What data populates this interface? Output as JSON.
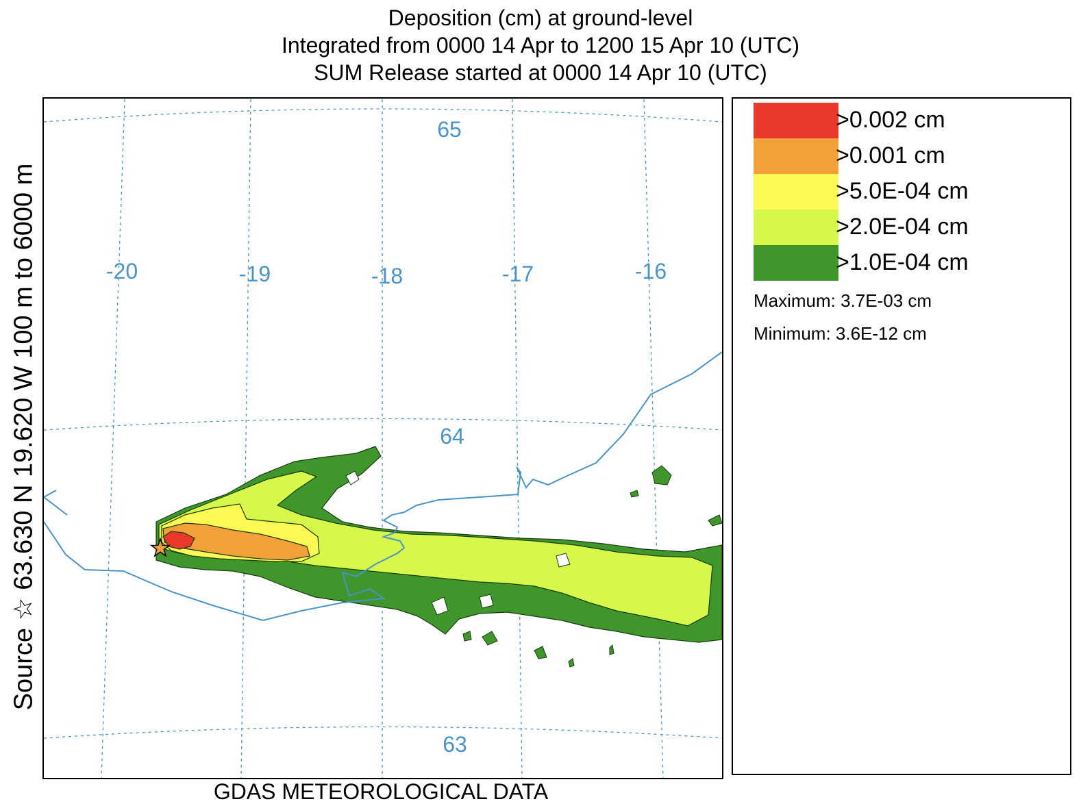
{
  "title": {
    "line1": "Deposition (cm) at ground-level",
    "line2": "Integrated from 0000 14 Apr to 1200 15 Apr 10 (UTC)",
    "line3": "SUM  Release started at 0000 14 Apr 10 (UTC)"
  },
  "side_label": "Source ☆  63.630  N  19.620  W     100 m to  6000 m",
  "footer": "GDAS METEOROLOGICAL DATA",
  "map": {
    "longitude_labels": [
      "-20",
      "-19",
      "-18",
      "-17",
      "-16"
    ],
    "latitude_labels": [
      "65",
      "64",
      "63"
    ],
    "source_icon": "star-icon",
    "colors": {
      "grid": "#4a93c8",
      "coast": "#4a93c8",
      "level_1": "#3f962a",
      "level_2": "#d6f84a",
      "level_3": "#fcf854",
      "level_4": "#f2a03a",
      "level_5": "#e8392a"
    }
  },
  "legend": {
    "items": [
      {
        "label": ">0.002 cm",
        "color": "#e8392a"
      },
      {
        "label": ">0.001 cm",
        "color": "#f2a03a"
      },
      {
        "label": ">5.0E-04 cm",
        "color": "#fcf854"
      },
      {
        "label": ">2.0E-04 cm",
        "color": "#d6f84a"
      },
      {
        "label": ">1.0E-04 cm",
        "color": "#3f962a"
      }
    ],
    "maximum": "Maximum: 3.7E-03 cm",
    "minimum": "Minimum: 3.6E-12 cm"
  }
}
